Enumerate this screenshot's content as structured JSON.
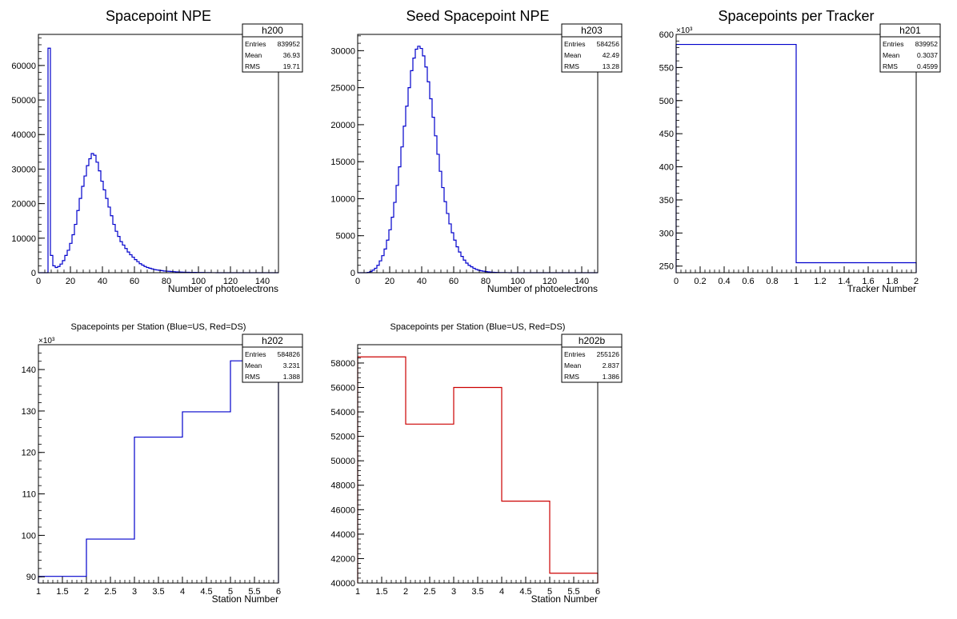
{
  "chart_data": [
    {
      "type": "histogram",
      "title": "Spacepoint NPE",
      "xlabel": "Number of photoelectrons",
      "ylabel": "",
      "xlim": [
        0,
        150
      ],
      "ylim": [
        0,
        69000
      ],
      "bin_width": 1.5,
      "color": "#0000cc",
      "xticks": [
        0,
        20,
        40,
        60,
        80,
        100,
        120,
        140
      ],
      "yticks": [
        0,
        10000,
        20000,
        30000,
        40000,
        50000,
        60000
      ],
      "yexponent": "",
      "values": [
        0,
        0,
        0,
        0,
        65000,
        5000,
        2000,
        1500,
        1800,
        2500,
        3500,
        5000,
        6500,
        8500,
        11000,
        14000,
        18000,
        21500,
        25000,
        28000,
        31000,
        33000,
        34500,
        34000,
        32000,
        29500,
        26500,
        24000,
        21500,
        19000,
        16500,
        14000,
        12000,
        10500,
        9000,
        8000,
        7000,
        6000,
        5200,
        4500,
        3800,
        3200,
        2600,
        2200,
        1800,
        1500,
        1300,
        1100,
        900,
        800,
        700,
        600,
        500,
        450,
        400,
        350,
        300,
        250,
        200,
        180,
        150,
        130,
        110,
        100,
        90,
        80,
        70,
        60,
        50,
        40,
        30,
        20,
        15,
        10,
        5,
        0,
        0,
        0,
        0,
        0,
        0,
        0,
        0,
        0,
        0,
        0,
        0,
        0,
        0,
        0,
        0,
        0,
        0,
        0,
        0,
        0,
        0,
        0,
        0,
        0
      ],
      "stats": {
        "name": "h200",
        "entries_label": "Entries",
        "entries": "839952",
        "mean_label": "Mean",
        "mean": "36.93",
        "rms_label": "RMS",
        "rms": "19.71"
      }
    },
    {
      "type": "histogram",
      "title": "Seed Spacepoint NPE",
      "xlabel": "Number of photoelectrons",
      "ylabel": "",
      "xlim": [
        0,
        150
      ],
      "ylim": [
        0,
        32200
      ],
      "bin_width": 1.5,
      "color": "#0000cc",
      "xticks": [
        0,
        20,
        40,
        60,
        80,
        100,
        120,
        140
      ],
      "yticks": [
        0,
        5000,
        10000,
        15000,
        20000,
        25000,
        30000
      ],
      "yexponent": "",
      "values": [
        0,
        0,
        0,
        0,
        50,
        150,
        350,
        600,
        1000,
        1600,
        2300,
        3200,
        4400,
        5800,
        7500,
        9500,
        11800,
        14300,
        17000,
        19800,
        22500,
        25000,
        27300,
        29000,
        30200,
        30600,
        30300,
        29300,
        27800,
        25800,
        23500,
        21000,
        18500,
        16000,
        13700,
        11500,
        9600,
        8000,
        6600,
        5400,
        4400,
        3500,
        2800,
        2200,
        1700,
        1300,
        1000,
        800,
        600,
        450,
        340,
        260,
        200,
        150,
        110,
        80,
        60,
        40,
        30,
        20,
        15,
        10,
        5,
        0,
        0,
        0,
        0,
        0,
        0,
        0,
        0,
        0,
        0,
        0,
        0,
        0,
        0,
        0,
        0,
        0,
        0,
        0,
        0,
        0,
        0,
        0,
        0,
        0,
        0,
        0,
        0,
        0,
        0,
        0,
        0,
        0,
        0,
        0,
        0,
        0
      ],
      "stats": {
        "name": "h203",
        "entries_label": "Entries",
        "entries": "584256",
        "mean_label": "Mean",
        "mean": "42.49",
        "rms_label": "RMS",
        "rms": "13.28"
      }
    },
    {
      "type": "histogram",
      "title": "Spacepoints per Tracker",
      "xlabel": "Tracker Number",
      "ylabel": "",
      "xlim": [
        0,
        2
      ],
      "ylim": [
        240,
        600
      ],
      "xedges": [
        0,
        1,
        2
      ],
      "color": "#0000cc",
      "xticks": [
        0,
        0.2,
        0.4,
        0.6,
        0.8,
        1,
        1.2,
        1.4,
        1.6,
        1.8,
        2
      ],
      "yticks": [
        250,
        300,
        350,
        400,
        450,
        500,
        550,
        600
      ],
      "yexponent": "×10³",
      "values": [
        584.8,
        255.1
      ],
      "stats": {
        "name": "h201",
        "entries_label": "Entries",
        "entries": "839952",
        "mean_label": "Mean",
        "mean": "0.3037",
        "rms_label": "RMS",
        "rms": "0.4599"
      }
    },
    {
      "type": "histogram",
      "title": "Spacepoints per Station (Blue=US, Red=DS)",
      "xlabel": "Station Number",
      "ylabel": "",
      "xlim": [
        1,
        6
      ],
      "ylim": [
        88.5,
        146
      ],
      "xedges": [
        1,
        2,
        3,
        4,
        5,
        6
      ],
      "color": "#0000cc",
      "xticks": [
        1,
        1.5,
        2,
        2.5,
        3,
        3.5,
        4,
        4.5,
        5,
        5.5,
        6
      ],
      "yticks": [
        90,
        100,
        110,
        120,
        130,
        140
      ],
      "yexponent": "×10³",
      "values": [
        90.1,
        99.1,
        123.7,
        129.8,
        142.1
      ],
      "stats": {
        "name": "h202",
        "entries_label": "Entries",
        "entries": "584826",
        "mean_label": "Mean",
        "mean": "3.231",
        "rms_label": "RMS",
        "rms": "1.388"
      }
    },
    {
      "type": "histogram",
      "title": "Spacepoints per Station (Blue=US, Red=DS)",
      "xlabel": "Station Number",
      "ylabel": "",
      "xlim": [
        1,
        6
      ],
      "ylim": [
        40000,
        59500
      ],
      "xedges": [
        1,
        2,
        3,
        4,
        5,
        6
      ],
      "color": "#cc0000",
      "xticks": [
        1,
        1.5,
        2,
        2.5,
        3,
        3.5,
        4,
        4.5,
        5,
        5.5,
        6
      ],
      "yticks": [
        40000,
        42000,
        44000,
        46000,
        48000,
        50000,
        52000,
        54000,
        56000,
        58000
      ],
      "yexponent": "",
      "values": [
        58500,
        53000,
        56000,
        46700,
        40800
      ],
      "stats": {
        "name": "h202b",
        "entries_label": "Entries",
        "entries": "255126",
        "mean_label": "Mean",
        "mean": "2.837",
        "rms_label": "RMS",
        "rms": "1.386"
      }
    }
  ]
}
